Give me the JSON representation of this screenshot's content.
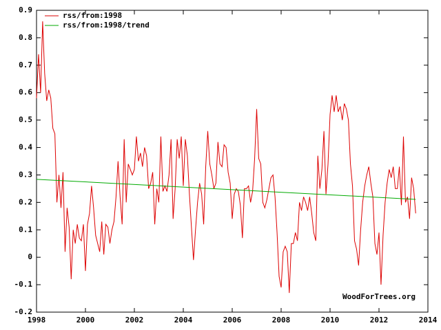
{
  "chart_data": {
    "type": "line",
    "annotation": "WoodForTrees.org",
    "xlim": [
      1998,
      2014
    ],
    "xticks": [
      1998,
      2000,
      2002,
      2004,
      2006,
      2008,
      2010,
      2012,
      2014
    ],
    "ylim": [
      -0.2,
      0.9
    ],
    "yticks": [
      -0.2,
      -0.1,
      0,
      0.1,
      0.2,
      0.3,
      0.4,
      0.5,
      0.6,
      0.7,
      0.8,
      0.9
    ],
    "legend": "upper left",
    "series": [
      {
        "name": "rss/from:1998",
        "color": "#dd0000",
        "x": [
          1998,
          1998.083,
          1998.167,
          1998.25,
          1998.333,
          1998.417,
          1998.5,
          1998.583,
          1998.667,
          1998.75,
          1998.833,
          1998.917,
          1999,
          1999.083,
          1999.167,
          1999.25,
          1999.333,
          1999.417,
          1999.5,
          1999.583,
          1999.667,
          1999.75,
          1999.833,
          1999.917,
          2000,
          2000.083,
          2000.167,
          2000.25,
          2000.333,
          2000.417,
          2000.5,
          2000.583,
          2000.667,
          2000.75,
          2000.833,
          2000.917,
          2001,
          2001.083,
          2001.167,
          2001.25,
          2001.333,
          2001.417,
          2001.5,
          2001.583,
          2001.667,
          2001.75,
          2001.833,
          2001.917,
          2002,
          2002.083,
          2002.167,
          2002.25,
          2002.333,
          2002.417,
          2002.5,
          2002.583,
          2002.667,
          2002.75,
          2002.833,
          2002.917,
          2003,
          2003.083,
          2003.167,
          2003.25,
          2003.333,
          2003.417,
          2003.5,
          2003.583,
          2003.667,
          2003.75,
          2003.833,
          2003.917,
          2004,
          2004.083,
          2004.167,
          2004.25,
          2004.333,
          2004.417,
          2004.5,
          2004.583,
          2004.667,
          2004.75,
          2004.833,
          2004.917,
          2005,
          2005.083,
          2005.167,
          2005.25,
          2005.333,
          2005.417,
          2005.5,
          2005.583,
          2005.667,
          2005.75,
          2005.833,
          2005.917,
          2006,
          2006.083,
          2006.167,
          2006.25,
          2006.333,
          2006.417,
          2006.5,
          2006.583,
          2006.667,
          2006.75,
          2006.833,
          2006.917,
          2007,
          2007.083,
          2007.167,
          2007.25,
          2007.333,
          2007.417,
          2007.5,
          2007.583,
          2007.667,
          2007.75,
          2007.833,
          2007.917,
          2008,
          2008.083,
          2008.167,
          2008.25,
          2008.333,
          2008.417,
          2008.5,
          2008.583,
          2008.667,
          2008.75,
          2008.833,
          2008.917,
          2009,
          2009.083,
          2009.167,
          2009.25,
          2009.333,
          2009.417,
          2009.5,
          2009.583,
          2009.667,
          2009.75,
          2009.833,
          2009.917,
          2010,
          2010.083,
          2010.167,
          2010.25,
          2010.333,
          2010.417,
          2010.5,
          2010.583,
          2010.667,
          2010.75,
          2010.833,
          2010.917,
          2011,
          2011.083,
          2011.167,
          2011.25,
          2011.333,
          2011.417,
          2011.5,
          2011.583,
          2011.667,
          2011.75,
          2011.833,
          2011.917,
          2012,
          2012.083,
          2012.167,
          2012.25,
          2012.333,
          2012.417,
          2012.5,
          2012.583,
          2012.667,
          2012.75,
          2012.833,
          2012.917,
          2013,
          2013.083,
          2013.167,
          2013.25,
          2013.333,
          2013.417,
          2013.5
        ],
        "values": [
          0.58,
          0.74,
          0.6,
          0.86,
          0.67,
          0.57,
          0.61,
          0.58,
          0.47,
          0.45,
          0.2,
          0.3,
          0.18,
          0.31,
          0.02,
          0.18,
          0.11,
          -0.08,
          0.1,
          0.05,
          0.12,
          0.07,
          0.06,
          0.12,
          -0.05,
          0.12,
          0.16,
          0.26,
          0.18,
          0.08,
          0.05,
          0.02,
          0.13,
          0.01,
          0.12,
          0.11,
          0.05,
          0.1,
          0.13,
          0.22,
          0.35,
          0.22,
          0.12,
          0.43,
          0.2,
          0.34,
          0.32,
          0.3,
          0.32,
          0.44,
          0.35,
          0.38,
          0.33,
          0.4,
          0.37,
          0.25,
          0.27,
          0.31,
          0.12,
          0.25,
          0.2,
          0.44,
          0.24,
          0.26,
          0.24,
          0.3,
          0.43,
          0.14,
          0.25,
          0.43,
          0.36,
          0.44,
          0.26,
          0.43,
          0.37,
          0.23,
          0.11,
          -0.01,
          0.1,
          0.2,
          0.27,
          0.23,
          0.12,
          0.33,
          0.46,
          0.34,
          0.3,
          0.25,
          0.27,
          0.42,
          0.34,
          0.33,
          0.41,
          0.4,
          0.31,
          0.27,
          0.14,
          0.23,
          0.25,
          0.24,
          0.19,
          0.07,
          0.25,
          0.25,
          0.26,
          0.2,
          0.24,
          0.36,
          0.54,
          0.36,
          0.34,
          0.2,
          0.18,
          0.21,
          0.25,
          0.29,
          0.3,
          0.22,
          0.09,
          -0.07,
          -0.11,
          0.02,
          0.04,
          0.02,
          -0.13,
          0.05,
          0.05,
          0.09,
          0.06,
          0.2,
          0.17,
          0.22,
          0.2,
          0.17,
          0.22,
          0.16,
          0.09,
          0.06,
          0.37,
          0.25,
          0.32,
          0.46,
          0.23,
          0.34,
          0.52,
          0.59,
          0.53,
          0.59,
          0.53,
          0.55,
          0.5,
          0.56,
          0.54,
          0.5,
          0.34,
          0.26,
          0.06,
          0.03,
          -0.03,
          0.1,
          0.2,
          0.26,
          0.3,
          0.33,
          0.27,
          0.22,
          0.05,
          0.01,
          0.09,
          -0.1,
          0.08,
          0.2,
          0.27,
          0.32,
          0.29,
          0.33,
          0.25,
          0.25,
          0.33,
          0.19,
          0.44,
          0.2,
          0.22,
          0.14,
          0.29,
          0.25,
          0.16
        ]
      },
      {
        "name": "rss/from:1998/trend",
        "color": "#00aa00",
        "x": [
          1998,
          2013.5
        ],
        "values": [
          0.284,
          0.211
        ]
      }
    ]
  }
}
